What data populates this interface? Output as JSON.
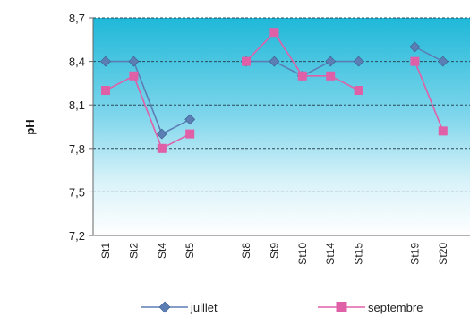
{
  "chart_data": {
    "type": "line",
    "title": "",
    "xlabel": "",
    "ylabel": "pH",
    "ylim": [
      7.2,
      8.7
    ],
    "yticks": [
      "7,2",
      "7,5",
      "7,8",
      "8,1",
      "8,4",
      "8,7"
    ],
    "categories": [
      "St1",
      "St2",
      "St4",
      "St5",
      "",
      "St8",
      "St9",
      "St10",
      "St14",
      "St15",
      "",
      "St19",
      "St20"
    ],
    "series": [
      {
        "name": "juillet",
        "color": "#5b7fb5",
        "marker": "diamond",
        "values": [
          8.4,
          8.4,
          7.9,
          8.0,
          null,
          8.4,
          8.4,
          8.3,
          8.4,
          8.4,
          null,
          8.5,
          8.4
        ]
      },
      {
        "name": "septembre",
        "color": "#e060a8",
        "marker": "square",
        "values": [
          8.2,
          8.3,
          7.8,
          7.9,
          null,
          8.4,
          8.6,
          8.3,
          8.3,
          8.2,
          null,
          8.4,
          7.92
        ]
      }
    ],
    "legend_position": "bottom",
    "grid": true
  }
}
